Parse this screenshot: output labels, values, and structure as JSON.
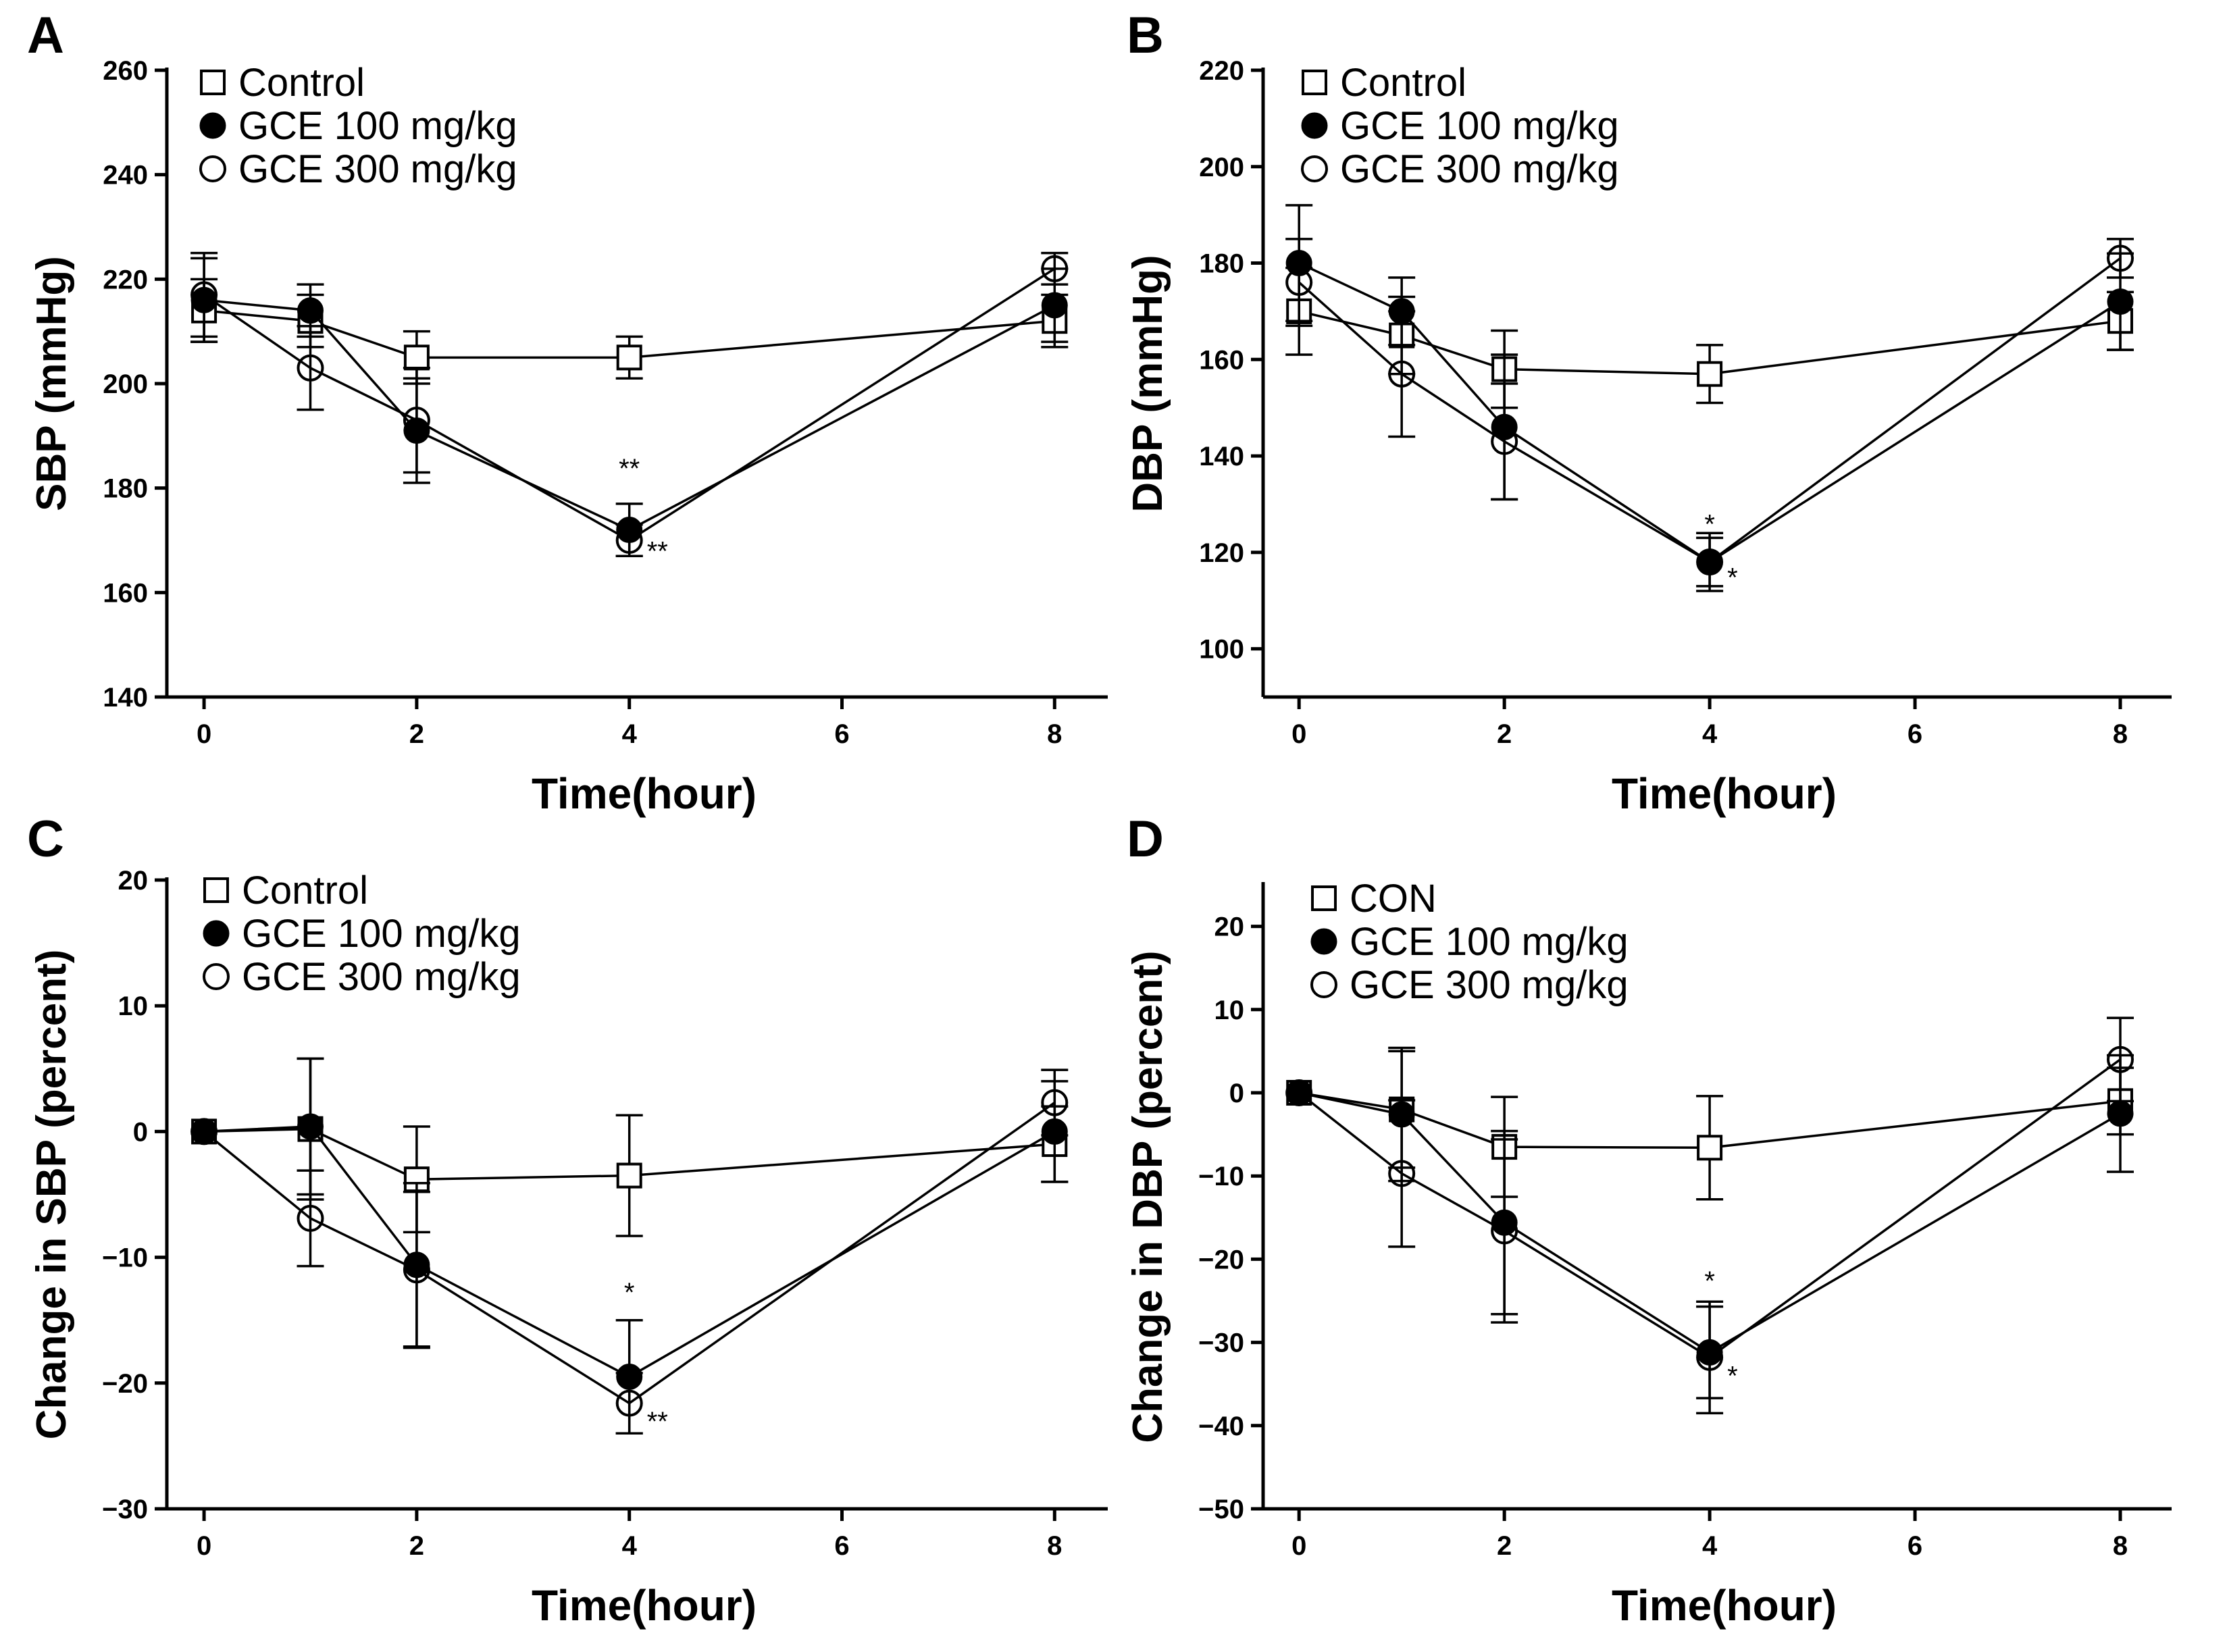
{
  "chart_data": [
    {
      "panel": "A",
      "type": "line",
      "ylabel": "SBP (mmHg)",
      "xlabel": "Time(hour)",
      "xlim": [
        -0.35,
        8.5
      ],
      "ylim": [
        140,
        260
      ],
      "xticks": [
        0,
        2,
        4,
        6,
        8
      ],
      "yticks": [
        140,
        160,
        180,
        200,
        220,
        240,
        260
      ],
      "x": [
        0,
        1,
        2,
        4,
        8
      ],
      "series": [
        {
          "name": "Control",
          "marker": "open-square",
          "values": [
            214,
            212,
            205,
            205,
            212
          ],
          "err": [
            6,
            5,
            5,
            4,
            5
          ]
        },
        {
          "name": "GCE 100 mg/kg",
          "marker": "filled-circle",
          "values": [
            216,
            214,
            191,
            172,
            215
          ],
          "err": [
            8,
            5,
            10,
            5,
            7
          ]
        },
        {
          "name": "GCE 300 mg/kg",
          "marker": "open-circle",
          "values": [
            217,
            203,
            193,
            170,
            222
          ],
          "err": [
            8,
            8,
            10,
            3,
            3
          ]
        }
      ],
      "annotations": [
        {
          "x": 4,
          "y": 182,
          "text": "**",
          "position": "above"
        },
        {
          "x": 4,
          "y": 169,
          "text": "**",
          "position": "right"
        }
      ],
      "legend": {
        "position": "top-left",
        "entries": [
          "Control",
          "GCE 100 mg/kg",
          "GCE 300 mg/kg"
        ]
      }
    },
    {
      "panel": "B",
      "type": "line",
      "ylabel": "DBP (mmHg)",
      "xlabel": "Time(hour)",
      "xlim": [
        -0.35,
        8.5
      ],
      "ylim": [
        90,
        220
      ],
      "xticks": [
        0,
        2,
        4,
        6,
        8
      ],
      "yticks": [
        100,
        120,
        140,
        160,
        180,
        200,
        220
      ],
      "x": [
        0,
        1,
        2,
        4,
        8
      ],
      "series": [
        {
          "name": "Control",
          "marker": "open-square",
          "values": [
            170,
            165,
            158,
            157,
            168
          ],
          "err": [
            9,
            8,
            8,
            6,
            6
          ]
        },
        {
          "name": "GCE 100 mg/kg",
          "marker": "filled-circle",
          "values": [
            180,
            170,
            146,
            118,
            172
          ],
          "err": [
            12,
            7,
            15,
            5,
            10
          ]
        },
        {
          "name": "GCE 300 mg/kg",
          "marker": "open-circle",
          "values": [
            176,
            157,
            143,
            118,
            181
          ],
          "err": [
            9,
            13,
            12,
            6,
            4
          ]
        }
      ],
      "annotations": [
        {
          "x": 4,
          "y": 124,
          "text": "*",
          "position": "above"
        },
        {
          "x": 4,
          "y": 116,
          "text": "*",
          "position": "right"
        }
      ],
      "legend": {
        "position": "top-left",
        "entries": [
          "Control",
          "GCE 100 mg/kg",
          "GCE 300 mg/kg"
        ]
      }
    },
    {
      "panel": "C",
      "type": "line",
      "ylabel": "Change in SBP (percent)",
      "xlabel": "Time(hour)",
      "xlim": [
        -0.35,
        8.5
      ],
      "ylim": [
        -30,
        20
      ],
      "xticks": [
        0,
        2,
        4,
        6,
        8
      ],
      "yticks": [
        -30,
        -20,
        -10,
        0,
        10,
        20
      ],
      "x": [
        0,
        1,
        2,
        4,
        8
      ],
      "series": [
        {
          "name": "Control",
          "marker": "open-square",
          "values": [
            0,
            0.2,
            -3.8,
            -3.5,
            -1
          ],
          "err": [
            0,
            5.6,
            4.2,
            4.8,
            3
          ]
        },
        {
          "name": "GCE 100 mg/kg",
          "marker": "filled-circle",
          "values": [
            0,
            0.4,
            -10.6,
            -19.5,
            0
          ],
          "err": [
            0,
            5.4,
            6.5,
            4.5,
            4
          ]
        },
        {
          "name": "GCE 300 mg/kg",
          "marker": "open-circle",
          "values": [
            0,
            -6.9,
            -11,
            -21.6,
            2.3
          ],
          "err": [
            0,
            3.8,
            6.2,
            2.4,
            2.6
          ]
        }
      ],
      "annotations": [
        {
          "x": 4,
          "y": -13.5,
          "text": "*",
          "position": "above"
        },
        {
          "x": 4,
          "y": -22.6,
          "text": "**",
          "position": "right"
        }
      ],
      "legend": {
        "position": "top-left",
        "entries": [
          "Control",
          "GCE 100 mg/kg",
          "GCE 300 mg/kg"
        ]
      }
    },
    {
      "panel": "D",
      "type": "line",
      "ylabel": "Change in DBP (percent)",
      "xlabel": "Time(hour)",
      "xlim": [
        -0.35,
        8.5
      ],
      "ylim": [
        -50,
        25
      ],
      "xticks": [
        0,
        2,
        4,
        6,
        8
      ],
      "yticks": [
        -50,
        -40,
        -30,
        -20,
        -10,
        0,
        10,
        20
      ],
      "x": [
        0,
        1,
        2,
        4,
        8
      ],
      "series": [
        {
          "name": "CON",
          "marker": "open-square",
          "values": [
            0,
            -2,
            -6.5,
            -6.6,
            -1
          ],
          "err": [
            0,
            7,
            6,
            6.2,
            4
          ]
        },
        {
          "name": "GCE 100 mg/kg",
          "marker": "filled-circle",
          "values": [
            0,
            -2.6,
            -15.6,
            -31.2,
            -2.5
          ],
          "err": [
            0,
            8,
            11,
            5.5,
            7
          ]
        },
        {
          "name": "GCE 300 mg/kg",
          "marker": "open-circle",
          "values": [
            0,
            -9.7,
            -16.6,
            -31.8,
            4
          ],
          "err": [
            0,
            8.8,
            11,
            6.7,
            5
          ]
        }
      ],
      "annotations": [
        {
          "x": 4,
          "y": -23.7,
          "text": "*",
          "position": "above"
        },
        {
          "x": 4,
          "y": -33.3,
          "text": "*",
          "position": "right"
        }
      ],
      "legend": {
        "position": "top-left",
        "entries": [
          "CON",
          "GCE 100 mg/kg",
          "GCE 300 mg/kg"
        ]
      }
    }
  ]
}
